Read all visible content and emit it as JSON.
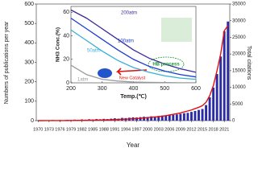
{
  "chart_data": [
    {
      "type": "bar",
      "x_label": "Year",
      "y_label": "Numbers of publications per year",
      "y2_label": "Total citations",
      "categories": [
        "1970",
        null,
        null,
        "1973",
        null,
        null,
        "1976",
        null,
        null,
        "1979",
        null,
        null,
        "1982",
        null,
        null,
        "1985",
        null,
        null,
        "1988",
        null,
        null,
        "1991",
        null,
        null,
        "1994",
        null,
        null,
        "1997",
        null,
        null,
        "2000",
        null,
        null,
        "2003",
        null,
        null,
        "2006",
        null,
        null,
        "2009",
        null,
        null,
        "2012",
        null,
        null,
        "2015",
        null,
        null,
        "2018",
        null,
        null,
        "2021",
        null
      ],
      "series": [
        {
          "kind": "bar",
          "color": "#2b2ba6",
          "values": [
            2,
            1,
            2,
            1,
            3,
            2,
            3,
            2,
            4,
            3,
            5,
            4,
            6,
            5,
            7,
            6,
            8,
            7,
            9,
            8,
            10,
            12,
            10,
            14,
            13,
            15,
            17,
            16,
            18,
            20,
            19,
            22,
            21,
            24,
            26,
            25,
            28,
            30,
            32,
            35,
            38,
            40,
            45,
            50,
            55,
            60,
            80,
            120,
            170,
            240,
            330,
            460,
            510
          ]
        },
        {
          "kind": "line",
          "axis": "y2",
          "color": "#e01010",
          "values": [
            0,
            2,
            5,
            8,
            12,
            15,
            20,
            25,
            30,
            40,
            50,
            60,
            70,
            80,
            100,
            120,
            140,
            160,
            180,
            200,
            250,
            300,
            350,
            400,
            450,
            500,
            550,
            600,
            700,
            800,
            900,
            1000,
            1100,
            1200,
            1350,
            1500,
            1700,
            1900,
            2100,
            2300,
            2600,
            2900,
            3200,
            3600,
            4000,
            4500,
            5500,
            7500,
            10500,
            15000,
            20000,
            27000,
            28500
          ]
        }
      ],
      "ylim": [
        0,
        600
      ],
      "yticks": [
        0,
        100,
        200,
        300,
        400,
        500,
        600
      ],
      "y2lim": [
        0,
        35000
      ],
      "y2ticks": [
        0,
        5000,
        10000,
        15000,
        20000,
        25000,
        30000,
        35000
      ]
    },
    {
      "type": "line",
      "x_label": "Temp.(℃)",
      "y_label": "NH3 Conc.(%)",
      "x": [
        200,
        250,
        300,
        350,
        400,
        450,
        500,
        550,
        600
      ],
      "series": [
        {
          "name": "200atm",
          "color": "#3a2a9c",
          "values": [
            62,
            55,
            46,
            37,
            28,
            21,
            16,
            12,
            9
          ]
        },
        {
          "name": "100atm",
          "color": "#1a3cd6",
          "values": [
            55,
            46,
            37,
            28,
            20,
            14,
            10,
            7,
            5
          ]
        },
        {
          "name": "50atm",
          "color": "#35b0d8",
          "values": [
            45,
            36,
            27,
            19,
            13,
            9,
            6,
            4,
            3
          ]
        },
        {
          "name": "1atm",
          "color": "#9a9a9a",
          "values": [
            15,
            7,
            3,
            1.5,
            0.7,
            0.4,
            0.2,
            0.1,
            0.1
          ]
        }
      ],
      "annotations": [
        "HB process",
        "New Catalyst"
      ],
      "xlim": [
        200,
        600
      ],
      "xticks": [
        200,
        300,
        400,
        500,
        600
      ],
      "ylim": [
        0,
        65
      ],
      "yticks": [
        0,
        20,
        40,
        60
      ]
    }
  ]
}
